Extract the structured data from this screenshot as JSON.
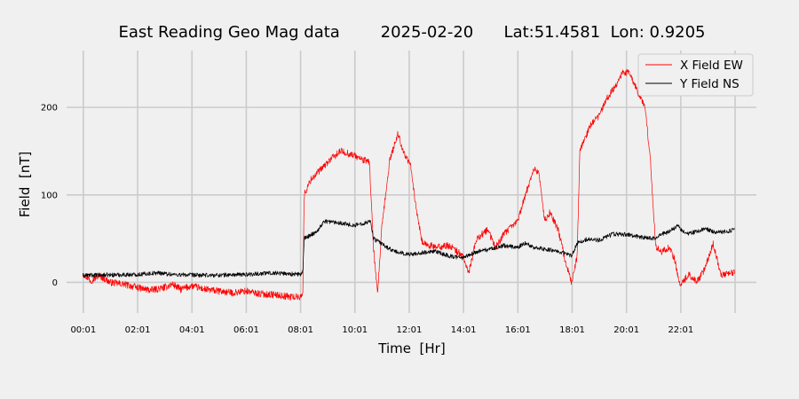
{
  "chart_data": {
    "type": "line",
    "title": "East Reading Geo Mag data        2025-02-20      Lat:51.4581  Lon: 0.9205",
    "xlabel": "Time  [Hr]",
    "ylabel": "Field  [nT]",
    "x_unit": "hours",
    "xlim": [
      -0.6,
      24.8
    ],
    "ylim": [
      -35,
      265
    ],
    "x_ticks": [
      {
        "x": 0.0167,
        "label": "00:01"
      },
      {
        "x": 2.0167,
        "label": "02:01"
      },
      {
        "x": 4.0167,
        "label": "04:01"
      },
      {
        "x": 6.0167,
        "label": "06:01"
      },
      {
        "x": 8.0167,
        "label": "08:01"
      },
      {
        "x": 10.0167,
        "label": "10:01"
      },
      {
        "x": 12.0167,
        "label": "12:01"
      },
      {
        "x": 14.0167,
        "label": "14:01"
      },
      {
        "x": 16.0167,
        "label": "16:01"
      },
      {
        "x": 18.0167,
        "label": "18:01"
      },
      {
        "x": 20.0167,
        "label": "20:01"
      },
      {
        "x": 22.0167,
        "label": "22:01"
      }
    ],
    "x_extra_gridlines": [
      24.0167
    ],
    "y_ticks": [
      0,
      100,
      200
    ],
    "grid": true,
    "legend_position": "top-right",
    "series": [
      {
        "name": "X Field EW",
        "color": "#ff0000",
        "noise": 4,
        "points": [
          [
            0.0,
            10
          ],
          [
            0.3,
            2
          ],
          [
            0.6,
            8
          ],
          [
            1.0,
            0
          ],
          [
            1.5,
            -2
          ],
          [
            2.0,
            -6
          ],
          [
            2.5,
            -9
          ],
          [
            3.0,
            -6
          ],
          [
            3.3,
            -2
          ],
          [
            3.6,
            -8
          ],
          [
            4.0,
            -4
          ],
          [
            4.5,
            -8
          ],
          [
            5.0,
            -10
          ],
          [
            5.5,
            -12
          ],
          [
            6.0,
            -10
          ],
          [
            6.5,
            -13
          ],
          [
            7.0,
            -14
          ],
          [
            7.5,
            -16
          ],
          [
            8.0,
            -17
          ],
          [
            8.1,
            -10
          ],
          [
            8.15,
            100
          ],
          [
            8.4,
            118
          ],
          [
            8.8,
            130
          ],
          [
            9.1,
            140
          ],
          [
            9.5,
            150
          ],
          [
            10.0,
            145
          ],
          [
            10.3,
            140
          ],
          [
            10.55,
            138
          ],
          [
            10.7,
            40
          ],
          [
            10.85,
            -15
          ],
          [
            11.0,
            60
          ],
          [
            11.3,
            140
          ],
          [
            11.6,
            170
          ],
          [
            11.8,
            150
          ],
          [
            12.1,
            130
          ],
          [
            12.2,
            100
          ],
          [
            12.3,
            80
          ],
          [
            12.5,
            45
          ],
          [
            13.0,
            40
          ],
          [
            13.5,
            42
          ],
          [
            14.0,
            30
          ],
          [
            14.2,
            10
          ],
          [
            14.5,
            50
          ],
          [
            14.9,
            60
          ],
          [
            15.2,
            40
          ],
          [
            15.5,
            55
          ],
          [
            16.0,
            70
          ],
          [
            16.3,
            100
          ],
          [
            16.6,
            130
          ],
          [
            16.8,
            125
          ],
          [
            17.0,
            70
          ],
          [
            17.2,
            80
          ],
          [
            17.5,
            60
          ],
          [
            17.8,
            20
          ],
          [
            18.0,
            0
          ],
          [
            18.2,
            30
          ],
          [
            18.3,
            150
          ],
          [
            18.7,
            180
          ],
          [
            19.0,
            190
          ],
          [
            19.3,
            210
          ],
          [
            19.6,
            225
          ],
          [
            19.9,
            240
          ],
          [
            20.1,
            240
          ],
          [
            20.4,
            220
          ],
          [
            20.7,
            200
          ],
          [
            20.9,
            140
          ],
          [
            20.95,
            110
          ],
          [
            21.1,
            40
          ],
          [
            21.3,
            35
          ],
          [
            21.6,
            40
          ],
          [
            21.8,
            25
          ],
          [
            22.0,
            -5
          ],
          [
            22.3,
            10
          ],
          [
            22.6,
            0
          ],
          [
            22.9,
            15
          ],
          [
            23.2,
            45
          ],
          [
            23.5,
            8
          ],
          [
            23.8,
            10
          ],
          [
            24.0,
            12
          ]
        ]
      },
      {
        "name": "Y Field NS",
        "color": "#000000",
        "noise": 2.5,
        "points": [
          [
            0.0,
            8
          ],
          [
            2.0,
            9
          ],
          [
            2.8,
            11
          ],
          [
            3.3,
            9
          ],
          [
            4.5,
            8
          ],
          [
            6.0,
            9
          ],
          [
            7.0,
            11
          ],
          [
            8.0,
            9
          ],
          [
            8.1,
            12
          ],
          [
            8.15,
            50
          ],
          [
            8.6,
            58
          ],
          [
            8.9,
            70
          ],
          [
            9.5,
            68
          ],
          [
            10.0,
            65
          ],
          [
            10.6,
            70
          ],
          [
            10.7,
            50
          ],
          [
            11.2,
            40
          ],
          [
            11.5,
            35
          ],
          [
            12.0,
            32
          ],
          [
            12.5,
            34
          ],
          [
            13.0,
            35
          ],
          [
            13.5,
            30
          ],
          [
            14.0,
            28
          ],
          [
            14.5,
            35
          ],
          [
            15.0,
            38
          ],
          [
            15.5,
            42
          ],
          [
            16.0,
            40
          ],
          [
            16.3,
            45
          ],
          [
            16.6,
            40
          ],
          [
            17.0,
            38
          ],
          [
            17.5,
            36
          ],
          [
            18.0,
            30
          ],
          [
            18.2,
            45
          ],
          [
            18.6,
            50
          ],
          [
            19.0,
            48
          ],
          [
            19.5,
            55
          ],
          [
            20.0,
            55
          ],
          [
            20.5,
            52
          ],
          [
            21.0,
            50
          ],
          [
            21.3,
            55
          ],
          [
            21.6,
            58
          ],
          [
            21.9,
            65
          ],
          [
            22.2,
            55
          ],
          [
            22.6,
            58
          ],
          [
            22.9,
            62
          ],
          [
            23.3,
            57
          ],
          [
            23.7,
            58
          ],
          [
            24.0,
            60
          ]
        ]
      }
    ]
  }
}
